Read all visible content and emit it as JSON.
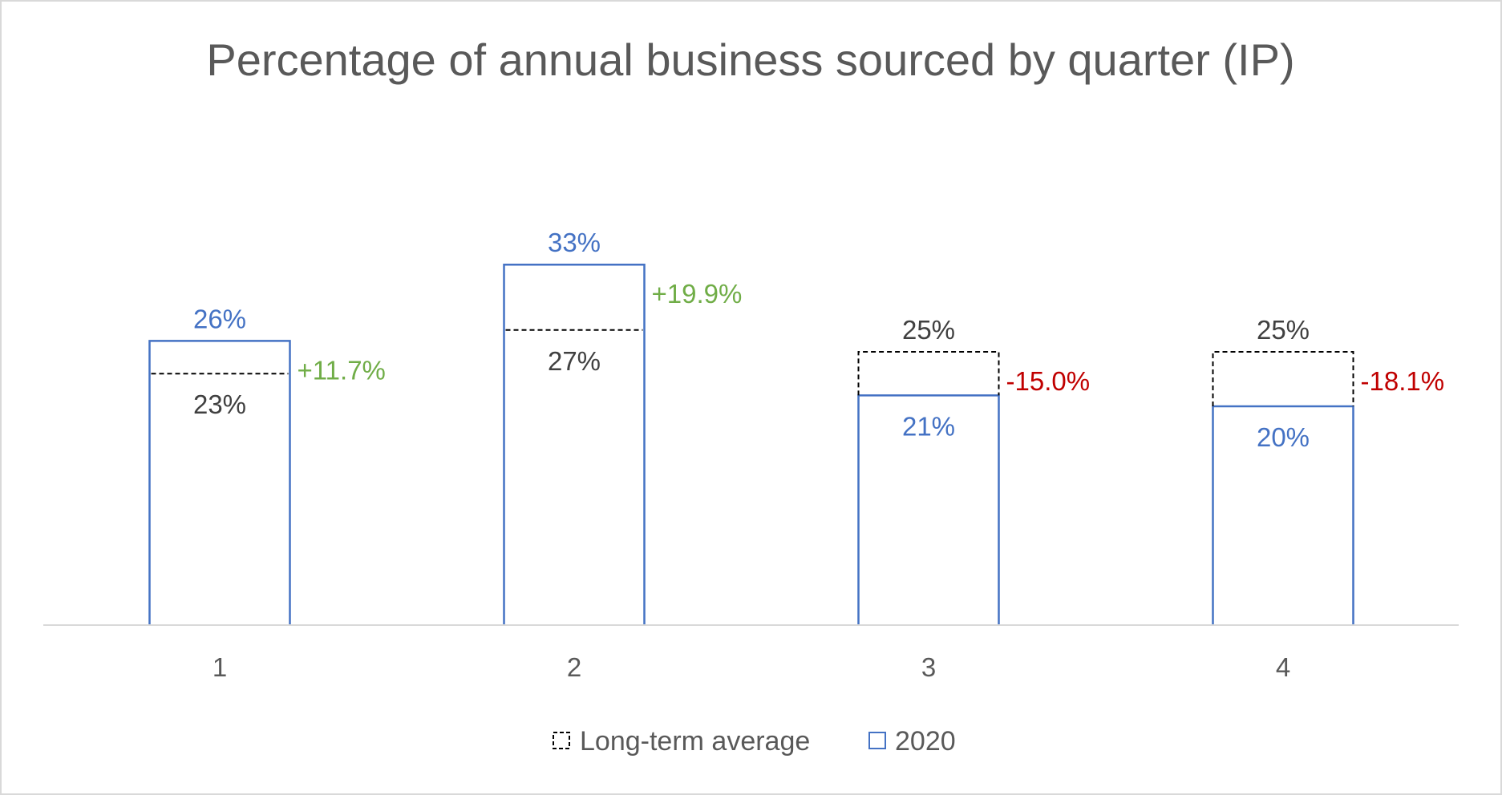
{
  "chart_data": {
    "type": "bar",
    "title": "Percentage of annual business sourced by quarter (IP)",
    "xlabel": "",
    "ylabel": "",
    "categories": [
      "1",
      "2",
      "3",
      "4"
    ],
    "series": [
      {
        "name": "Long-term average",
        "values": [
          23,
          27,
          25,
          25
        ],
        "labels": [
          "23%",
          "27%",
          "25%",
          "25%"
        ],
        "color": "#000000",
        "style": "dashed-outline"
      },
      {
        "name": "2020",
        "values": [
          26,
          33,
          21,
          20
        ],
        "labels": [
          "26%",
          "33%",
          "21%",
          "20%"
        ],
        "color": "#4472c4",
        "style": "solid-outline"
      }
    ],
    "changes": [
      "+11.7%",
      "+19.9%",
      "-15.0%",
      "-18.1%"
    ],
    "change_colors": [
      "#70ad47",
      "#70ad47",
      "#c00000",
      "#c00000"
    ],
    "ylim": [
      0,
      40
    ],
    "grid": false,
    "legend": "bottom"
  },
  "colors": {
    "title": "#595959",
    "axis": "#d9d9d9",
    "average_label": "#404040",
    "current_label": "#4472c4"
  }
}
